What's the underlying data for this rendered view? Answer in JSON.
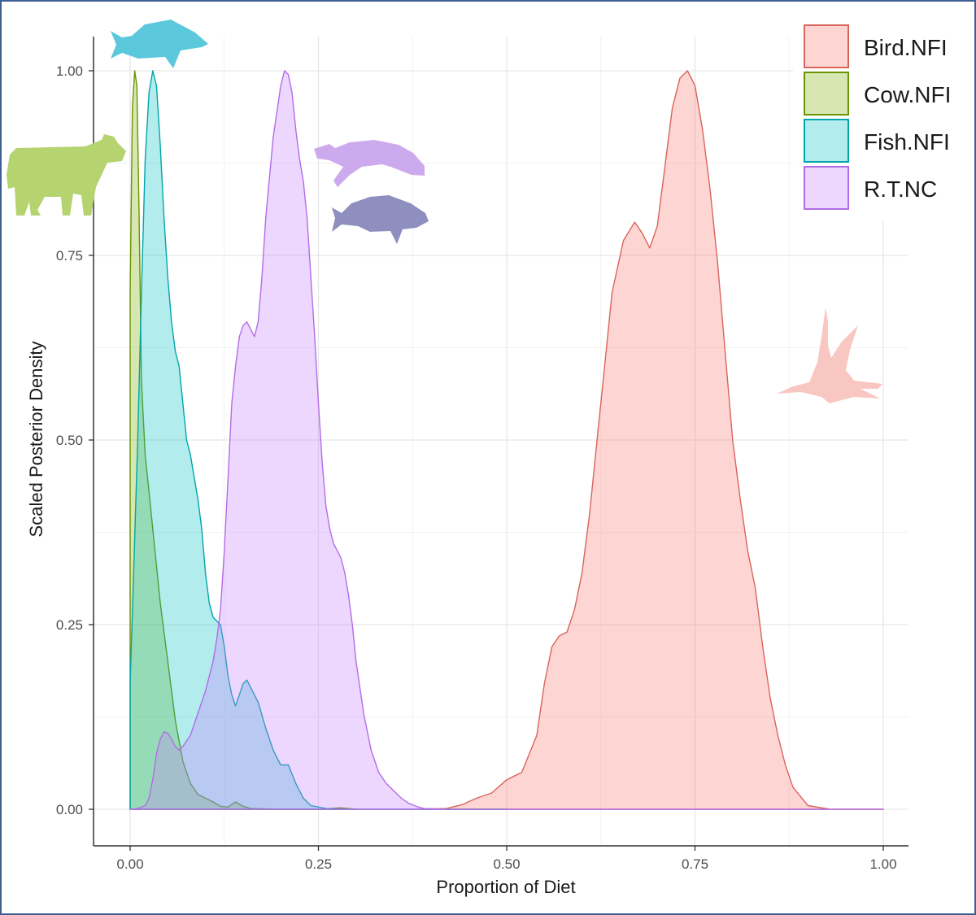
{
  "chart_data": {
    "type": "area",
    "title": "",
    "xlabel": "Proportion of Diet",
    "ylabel": "Scaled Posterior Density",
    "xlim": [
      0,
      1
    ],
    "ylim": [
      0,
      1
    ],
    "x_ticks": [
      "0.00",
      "0.25",
      "0.50",
      "0.75",
      "1.00"
    ],
    "y_ticks": [
      "0.00",
      "0.25",
      "0.50",
      "0.75",
      "1.00"
    ],
    "grid": true,
    "legend_position": "top-right",
    "series": [
      {
        "name": "Bird.NFI",
        "fill": "#f8766d",
        "stroke": "#d9645c",
        "points": [
          [
            0.38,
            0
          ],
          [
            0.42,
            0.001
          ],
          [
            0.44,
            0.006
          ],
          [
            0.46,
            0.015
          ],
          [
            0.48,
            0.022
          ],
          [
            0.5,
            0.04
          ],
          [
            0.52,
            0.05
          ],
          [
            0.54,
            0.1
          ],
          [
            0.55,
            0.17
          ],
          [
            0.56,
            0.22
          ],
          [
            0.57,
            0.235
          ],
          [
            0.58,
            0.24
          ],
          [
            0.59,
            0.27
          ],
          [
            0.6,
            0.32
          ],
          [
            0.61,
            0.4
          ],
          [
            0.62,
            0.5
          ],
          [
            0.63,
            0.6
          ],
          [
            0.64,
            0.7
          ],
          [
            0.655,
            0.77
          ],
          [
            0.67,
            0.795
          ],
          [
            0.68,
            0.78
          ],
          [
            0.69,
            0.76
          ],
          [
            0.7,
            0.79
          ],
          [
            0.71,
            0.87
          ],
          [
            0.72,
            0.95
          ],
          [
            0.73,
            0.99
          ],
          [
            0.74,
            1.0
          ],
          [
            0.75,
            0.98
          ],
          [
            0.76,
            0.92
          ],
          [
            0.77,
            0.84
          ],
          [
            0.78,
            0.74
          ],
          [
            0.79,
            0.62
          ],
          [
            0.8,
            0.5
          ],
          [
            0.81,
            0.42
          ],
          [
            0.82,
            0.35
          ],
          [
            0.83,
            0.3
          ],
          [
            0.84,
            0.22
          ],
          [
            0.85,
            0.15
          ],
          [
            0.86,
            0.1
          ],
          [
            0.87,
            0.06
          ],
          [
            0.88,
            0.03
          ],
          [
            0.9,
            0.005
          ],
          [
            0.93,
            0
          ],
          [
            1.0,
            0
          ]
        ]
      },
      {
        "name": "Cow.NFI",
        "fill": "#7cae00",
        "stroke": "#6a9400",
        "points": [
          [
            0,
            0.7
          ],
          [
            0.003,
            0.95
          ],
          [
            0.006,
            1.0
          ],
          [
            0.009,
            0.98
          ],
          [
            0.012,
            0.8
          ],
          [
            0.015,
            0.58
          ],
          [
            0.02,
            0.48
          ],
          [
            0.025,
            0.43
          ],
          [
            0.03,
            0.38
          ],
          [
            0.035,
            0.33
          ],
          [
            0.04,
            0.28
          ],
          [
            0.05,
            0.2
          ],
          [
            0.06,
            0.12
          ],
          [
            0.07,
            0.065
          ],
          [
            0.08,
            0.035
          ],
          [
            0.09,
            0.02
          ],
          [
            0.1,
            0.015
          ],
          [
            0.11,
            0.01
          ],
          [
            0.12,
            0.004
          ],
          [
            0.13,
            0.003
          ],
          [
            0.14,
            0.01
          ],
          [
            0.15,
            0.004
          ],
          [
            0.16,
            0.001
          ],
          [
            0.2,
            0
          ],
          [
            0.25,
            0
          ],
          [
            0.28,
            0.002
          ],
          [
            0.3,
            0
          ]
        ]
      },
      {
        "name": "Fish.NFI",
        "fill": "#00bfc4",
        "stroke": "#00a5aa",
        "points": [
          [
            0,
            0.17
          ],
          [
            0.005,
            0.33
          ],
          [
            0.01,
            0.5
          ],
          [
            0.015,
            0.7
          ],
          [
            0.02,
            0.88
          ],
          [
            0.025,
            0.97
          ],
          [
            0.03,
            1.0
          ],
          [
            0.035,
            0.98
          ],
          [
            0.04,
            0.9
          ],
          [
            0.045,
            0.8
          ],
          [
            0.05,
            0.72
          ],
          [
            0.055,
            0.66
          ],
          [
            0.06,
            0.62
          ],
          [
            0.065,
            0.6
          ],
          [
            0.07,
            0.55
          ],
          [
            0.075,
            0.5
          ],
          [
            0.08,
            0.48
          ],
          [
            0.085,
            0.45
          ],
          [
            0.09,
            0.42
          ],
          [
            0.095,
            0.38
          ],
          [
            0.1,
            0.32
          ],
          [
            0.105,
            0.28
          ],
          [
            0.11,
            0.26
          ],
          [
            0.115,
            0.255
          ],
          [
            0.12,
            0.25
          ],
          [
            0.125,
            0.22
          ],
          [
            0.13,
            0.18
          ],
          [
            0.135,
            0.155
          ],
          [
            0.14,
            0.14
          ],
          [
            0.145,
            0.155
          ],
          [
            0.15,
            0.17
          ],
          [
            0.155,
            0.175
          ],
          [
            0.16,
            0.165
          ],
          [
            0.165,
            0.155
          ],
          [
            0.17,
            0.145
          ],
          [
            0.18,
            0.11
          ],
          [
            0.19,
            0.08
          ],
          [
            0.2,
            0.06
          ],
          [
            0.21,
            0.06
          ],
          [
            0.22,
            0.035
          ],
          [
            0.23,
            0.015
          ],
          [
            0.24,
            0.005
          ],
          [
            0.26,
            0.001
          ],
          [
            0.3,
            0
          ],
          [
            0.5,
            0
          ]
        ]
      },
      {
        "name": "R.T.NC",
        "fill": "#c77cff",
        "stroke": "#b26de6",
        "points": [
          [
            0,
            0
          ],
          [
            0.01,
            0.001
          ],
          [
            0.02,
            0.005
          ],
          [
            0.025,
            0.015
          ],
          [
            0.03,
            0.04
          ],
          [
            0.035,
            0.075
          ],
          [
            0.04,
            0.095
          ],
          [
            0.045,
            0.105
          ],
          [
            0.05,
            0.103
          ],
          [
            0.055,
            0.095
          ],
          [
            0.06,
            0.085
          ],
          [
            0.065,
            0.08
          ],
          [
            0.07,
            0.085
          ],
          [
            0.08,
            0.1
          ],
          [
            0.09,
            0.13
          ],
          [
            0.1,
            0.16
          ],
          [
            0.11,
            0.2
          ],
          [
            0.115,
            0.23
          ],
          [
            0.12,
            0.27
          ],
          [
            0.125,
            0.35
          ],
          [
            0.13,
            0.45
          ],
          [
            0.135,
            0.55
          ],
          [
            0.14,
            0.6
          ],
          [
            0.145,
            0.64
          ],
          [
            0.15,
            0.655
          ],
          [
            0.155,
            0.66
          ],
          [
            0.16,
            0.65
          ],
          [
            0.165,
            0.64
          ],
          [
            0.17,
            0.66
          ],
          [
            0.175,
            0.72
          ],
          [
            0.18,
            0.8
          ],
          [
            0.19,
            0.91
          ],
          [
            0.2,
            0.98
          ],
          [
            0.205,
            1.0
          ],
          [
            0.21,
            0.995
          ],
          [
            0.215,
            0.97
          ],
          [
            0.22,
            0.92
          ],
          [
            0.225,
            0.88
          ],
          [
            0.23,
            0.85
          ],
          [
            0.235,
            0.8
          ],
          [
            0.24,
            0.72
          ],
          [
            0.245,
            0.64
          ],
          [
            0.25,
            0.55
          ],
          [
            0.255,
            0.47
          ],
          [
            0.26,
            0.41
          ],
          [
            0.265,
            0.38
          ],
          [
            0.27,
            0.36
          ],
          [
            0.275,
            0.35
          ],
          [
            0.28,
            0.34
          ],
          [
            0.285,
            0.32
          ],
          [
            0.29,
            0.29
          ],
          [
            0.295,
            0.25
          ],
          [
            0.3,
            0.2
          ],
          [
            0.31,
            0.13
          ],
          [
            0.32,
            0.08
          ],
          [
            0.33,
            0.05
          ],
          [
            0.34,
            0.035
          ],
          [
            0.35,
            0.025
          ],
          [
            0.36,
            0.015
          ],
          [
            0.37,
            0.008
          ],
          [
            0.38,
            0.004
          ],
          [
            0.39,
            0.001
          ],
          [
            0.42,
            0
          ],
          [
            1.0,
            0
          ]
        ]
      }
    ]
  },
  "silhouettes": [
    {
      "name": "cow-silhouette-icon",
      "color": "#b5d36f",
      "series": "Cow.NFI"
    },
    {
      "name": "fish-silhouette-icon",
      "color": "#5bc8dc",
      "series": "Fish.NFI"
    },
    {
      "name": "turtle-silhouette-icon",
      "color": "#cda9ee",
      "series": "R.T.NC"
    },
    {
      "name": "reef-fish-silhouette-icon",
      "color": "#8f8fbf",
      "series": "R.T.NC"
    },
    {
      "name": "bird-silhouette-icon",
      "color": "#f9c7c2",
      "series": "Bird.NFI"
    }
  ]
}
